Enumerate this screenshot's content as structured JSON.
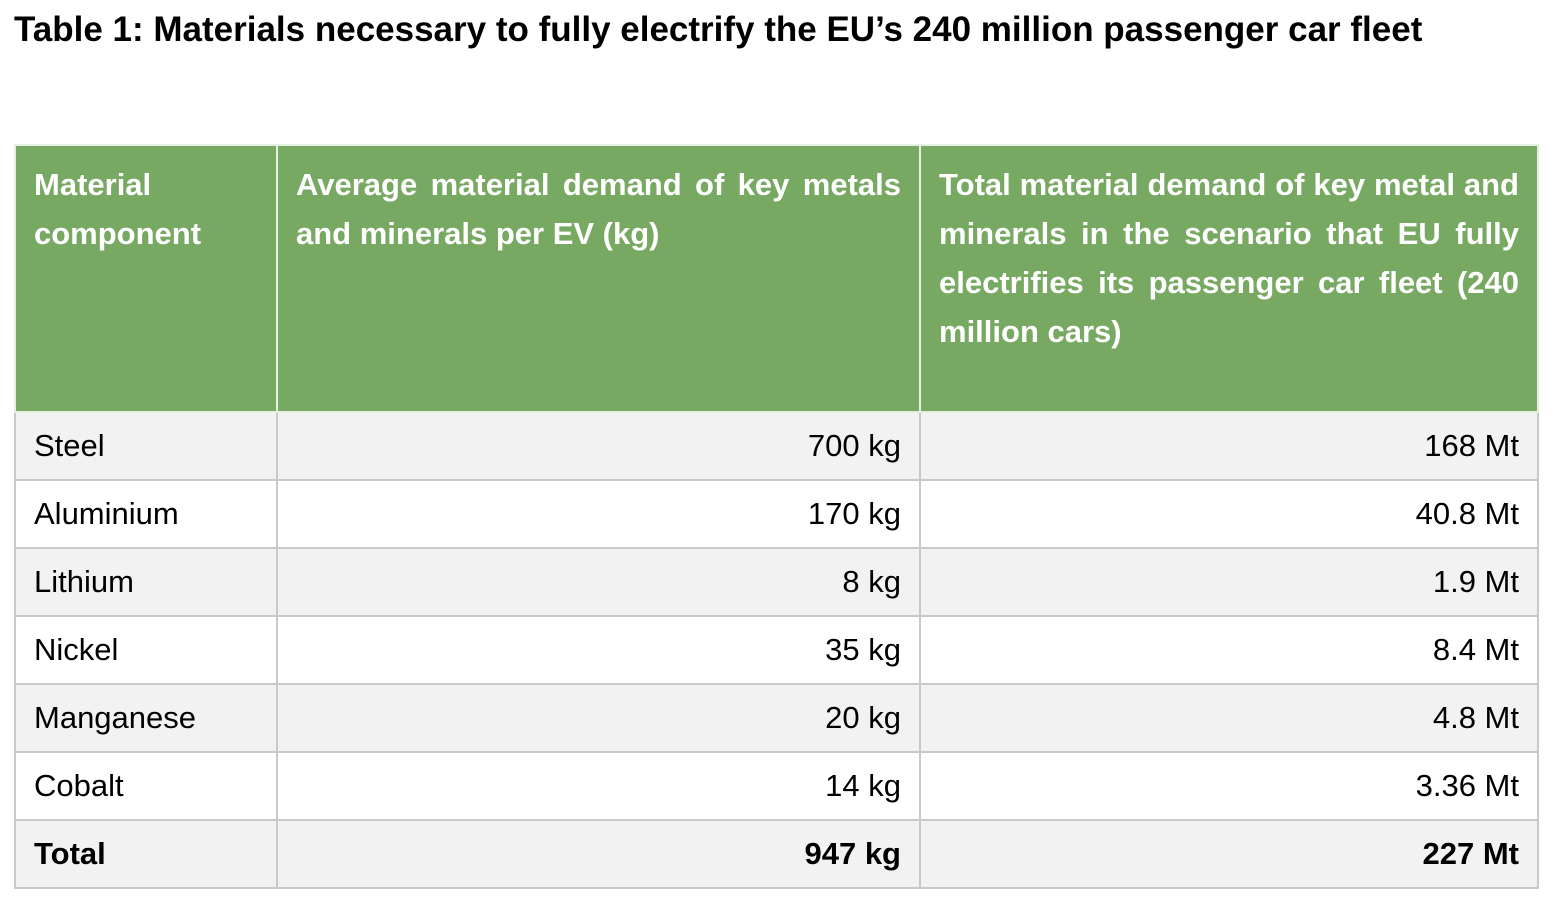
{
  "caption": "Table 1: Materials necessary to fully electrify the EU’s 240 million passenger car fleet",
  "table": {
    "headers": [
      "Material component",
      "Average material demand of key metals and minerals per EV (kg)",
      "Total material demand of key metal and minerals in the scenario that EU fully electrifies its passenger car fleet (240 million cars)"
    ],
    "rows": [
      [
        "Steel",
        "700 kg",
        "168 Mt"
      ],
      [
        "Aluminium",
        "170 kg",
        "40.8 Mt"
      ],
      [
        "Lithium",
        "8 kg",
        "1.9 Mt"
      ],
      [
        "Nickel",
        "35 kg",
        "8.4 Mt"
      ],
      [
        "Manganese",
        "20 kg",
        "4.8 Mt"
      ],
      [
        "Cobalt",
        "14 kg",
        "3.36 Mt"
      ]
    ],
    "total": [
      "Total",
      "947 kg",
      "227 Mt"
    ]
  },
  "colors": {
    "header_background": "#78a962",
    "header_text": "#ffffff",
    "row_shade": "#f2f2f2",
    "grid": "#c9c9c9"
  }
}
